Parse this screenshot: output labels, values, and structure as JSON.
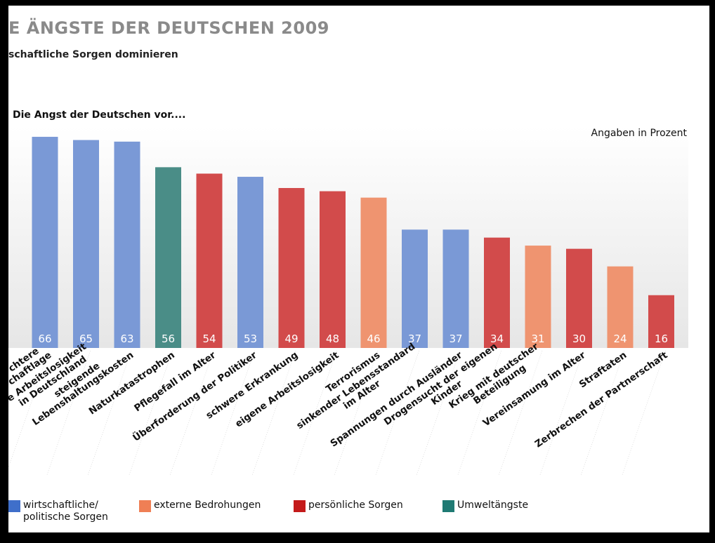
{
  "page": {
    "title": "E ÄNGSTE DER DEUTSCHEN 2009",
    "subtitle": "schaftliche Sorgen dominieren",
    "chart_heading": "Die Angst der Deutschen vor....",
    "units_note": "Angaben in Prozent"
  },
  "colors": {
    "background": "#000000",
    "wirtschaftlich": "#7a99d6",
    "extern": "#ef9470",
    "persoenlich": "#d24b4b",
    "umwelt": "#4a8d87",
    "value_label": "#ffffff"
  },
  "legend": [
    {
      "label": "wirtschaftliche/\npolitische Sorgen",
      "color": "#3f6fca"
    },
    {
      "label": "externe Bedrohungen",
      "color": "#ef7f55"
    },
    {
      "label": "persönliche Sorgen",
      "color": "#c41a1a"
    },
    {
      "label": "Umweltängste",
      "color": "#1f7a73"
    }
  ],
  "chart_data": {
    "type": "bar",
    "title": "Die Angst der Deutschen vor....",
    "ylabel": "",
    "grid": false,
    "data_labels": true,
    "categories": [
      [
        "chtere",
        "chaftlage"
      ],
      [
        "e Arbeitslosigkeit",
        "in Deutschland"
      ],
      [
        "steigende",
        "Lebenshaltungskosten"
      ],
      [
        "Naturkatastrophen"
      ],
      [
        "Pflegefall im Alter"
      ],
      [
        "Überforderung der Politiker"
      ],
      [
        "schwere Erkrankung"
      ],
      [
        "eigene Arbeitslosigkeit"
      ],
      [
        "Terrorismus"
      ],
      [
        "sinkender Lebensstandard",
        "im Alter"
      ],
      [
        "Spannungen durch Ausländer"
      ],
      [
        "Drogensucht der eigenen",
        "Kinder"
      ],
      [
        "Krieg mit deutscher",
        "Beteiligung"
      ],
      [
        "Vereinsamung im Alter"
      ],
      [
        "Straftaten"
      ],
      [
        "Zerbrechen der Partnerschaft"
      ]
    ],
    "values": [
      66,
      65,
      63,
      56,
      54,
      53,
      49,
      48,
      46,
      37,
      37,
      34,
      31,
      30,
      24,
      16
    ],
    "groups": [
      "wirtschaftlich",
      "wirtschaftlich",
      "wirtschaftlich",
      "umwelt",
      "persoenlich",
      "wirtschaftlich",
      "persoenlich",
      "persoenlich",
      "extern",
      "wirtschaftlich",
      "wirtschaftlich",
      "persoenlich",
      "extern",
      "persoenlich",
      "extern",
      "persoenlich"
    ],
    "bar_heights": [
      66,
      65,
      64.5,
      56.5,
      54.5,
      53.5,
      50,
      49,
      47,
      37,
      37,
      34.5,
      32,
      31,
      25.5,
      16.5
    ],
    "ylim": [
      0,
      70
    ]
  }
}
